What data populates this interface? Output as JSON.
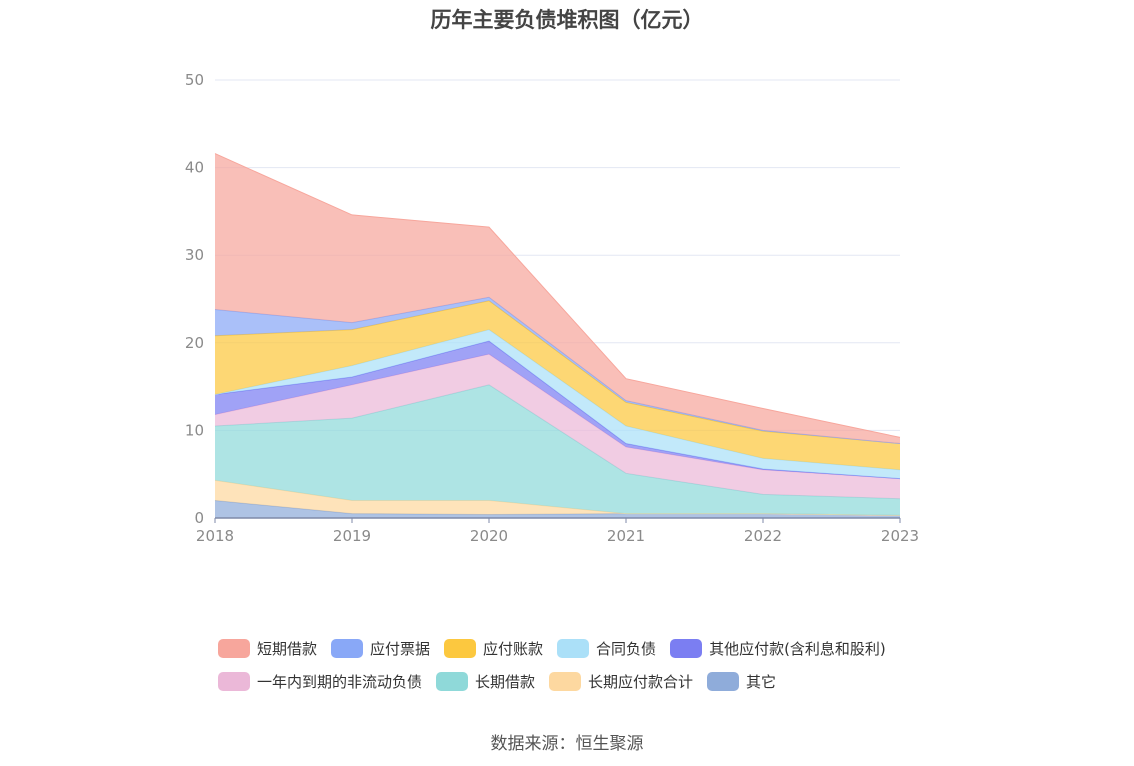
{
  "title": "历年主要负债堆积图（亿元）",
  "source": "数据来源：恒生聚源",
  "chart_data": {
    "type": "area",
    "stacked": true,
    "title": "历年主要负债堆积图（亿元）",
    "x": [
      "2018",
      "2019",
      "2020",
      "2021",
      "2022",
      "2023"
    ],
    "ylim": [
      0,
      50
    ],
    "yticks": [
      0,
      10,
      20,
      30,
      40,
      50
    ],
    "grid": true,
    "legend_position": "bottom",
    "series": [
      {
        "name": "其它",
        "color": "#8facda",
        "values": [
          2.0,
          0.5,
          0.4,
          0.5,
          0.5,
          0.3
        ]
      },
      {
        "name": "长期应付款合计",
        "color": "#fdd8a0",
        "values": [
          2.3,
          1.5,
          1.6,
          0.0,
          0.0,
          0.0
        ]
      },
      {
        "name": "长期借款",
        "color": "#8fd9d9",
        "values": [
          6.2,
          9.4,
          13.2,
          4.6,
          2.2,
          1.9
        ]
      },
      {
        "name": "一年内到期的非流动负债",
        "color": "#ebb8d8",
        "values": [
          1.3,
          3.8,
          3.5,
          3.0,
          2.8,
          2.3
        ]
      },
      {
        "name": "其他应付款(含利息和股利)",
        "color": "#7b7ef2",
        "values": [
          2.3,
          0.9,
          1.5,
          0.4,
          0.1,
          0.0
        ]
      },
      {
        "name": "合同负债",
        "color": "#abe0f8",
        "values": [
          0.0,
          1.3,
          1.3,
          2.0,
          1.2,
          1.0
        ]
      },
      {
        "name": "应付账款",
        "color": "#fcc83f",
        "values": [
          6.7,
          4.1,
          3.3,
          2.7,
          3.1,
          3.0
        ]
      },
      {
        "name": "应付票据",
        "color": "#89a8f7",
        "values": [
          3.0,
          0.8,
          0.4,
          0.2,
          0.1,
          0.0
        ]
      },
      {
        "name": "短期借款",
        "color": "#f7a69c",
        "values": [
          17.8,
          12.3,
          8.0,
          2.5,
          2.5,
          0.7
        ]
      }
    ]
  },
  "legend": {
    "rows": [
      [
        {
          "name": "短期借款",
          "color": "#f7a69c"
        },
        {
          "name": "应付票据",
          "color": "#89a8f7"
        },
        {
          "name": "应付账款",
          "color": "#fcc83f"
        },
        {
          "name": "合同负债",
          "color": "#abe0f8"
        },
        {
          "name": "其他应付款(含利息和股利)",
          "color": "#7b7ef2"
        }
      ],
      [
        {
          "name": "一年内到期的非流动负债",
          "color": "#ebb8d8"
        },
        {
          "name": "长期借款",
          "color": "#8fd9d9"
        },
        {
          "name": "长期应付款合计",
          "color": "#fdd8a0"
        },
        {
          "name": "其它",
          "color": "#8facda"
        }
      ]
    ]
  }
}
